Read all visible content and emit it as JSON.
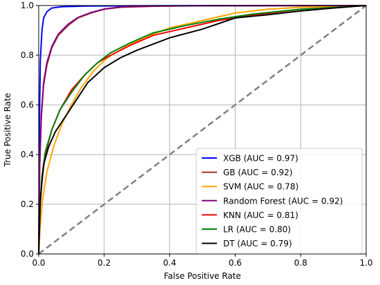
{
  "chart_data": {
    "type": "line",
    "xlabel": "False Positive Rate",
    "ylabel": "True Positive Rate",
    "xlim": [
      0,
      1
    ],
    "ylim": [
      0,
      1
    ],
    "grid": true,
    "legend_position": "bottom-right",
    "x_ticks": [
      "0.0",
      "0.2",
      "0.4",
      "0.6",
      "0.8",
      "1.0"
    ],
    "y_ticks": [
      "0.0",
      "0.2",
      "0.4",
      "0.6",
      "0.8",
      "1.0"
    ],
    "series": [
      {
        "name": "XGB (AUC = 0.97)",
        "color": "#0000ff",
        "points": [
          [
            0,
            0
          ],
          [
            0.002,
            0.5
          ],
          [
            0.005,
            0.78
          ],
          [
            0.01,
            0.9
          ],
          [
            0.015,
            0.95
          ],
          [
            0.025,
            0.975
          ],
          [
            0.04,
            0.99
          ],
          [
            0.07,
            0.995
          ],
          [
            0.15,
            0.998
          ],
          [
            0.3,
            0.999
          ],
          [
            1,
            1
          ]
        ]
      },
      {
        "name": "GB (AUC = 0.92)",
        "color": "#a52a2a",
        "points": [
          [
            0,
            0
          ],
          [
            0.003,
            0.35
          ],
          [
            0.008,
            0.55
          ],
          [
            0.015,
            0.68
          ],
          [
            0.025,
            0.76
          ],
          [
            0.04,
            0.83
          ],
          [
            0.06,
            0.88
          ],
          [
            0.09,
            0.92
          ],
          [
            0.12,
            0.95
          ],
          [
            0.16,
            0.97
          ],
          [
            0.2,
            0.985
          ],
          [
            0.25,
            0.993
          ],
          [
            0.35,
            0.997
          ],
          [
            0.5,
            0.999
          ],
          [
            1,
            1
          ]
        ]
      },
      {
        "name": "SVM (AUC = 0.78)",
        "color": "#ffa500",
        "points": [
          [
            0,
            0
          ],
          [
            0.004,
            0.1
          ],
          [
            0.012,
            0.22
          ],
          [
            0.025,
            0.33
          ],
          [
            0.045,
            0.43
          ],
          [
            0.07,
            0.52
          ],
          [
            0.1,
            0.6
          ],
          [
            0.13,
            0.67
          ],
          [
            0.17,
            0.74
          ],
          [
            0.21,
            0.79
          ],
          [
            0.26,
            0.83
          ],
          [
            0.32,
            0.87
          ],
          [
            0.4,
            0.91
          ],
          [
            0.5,
            0.94
          ],
          [
            0.6,
            0.97
          ],
          [
            0.7,
            0.985
          ],
          [
            0.8,
            0.993
          ],
          [
            1,
            1
          ]
        ]
      },
      {
        "name": "Random Forest (AUC = 0.92)",
        "color": "#800080",
        "points": [
          [
            0,
            0
          ],
          [
            0.003,
            0.36
          ],
          [
            0.008,
            0.56
          ],
          [
            0.015,
            0.69
          ],
          [
            0.025,
            0.77
          ],
          [
            0.04,
            0.835
          ],
          [
            0.06,
            0.885
          ],
          [
            0.09,
            0.925
          ],
          [
            0.12,
            0.952
          ],
          [
            0.16,
            0.972
          ],
          [
            0.2,
            0.986
          ],
          [
            0.25,
            0.994
          ],
          [
            0.35,
            0.998
          ],
          [
            0.5,
            0.999
          ],
          [
            1,
            1
          ]
        ]
      },
      {
        "name": "KNN (AUC = 0.81)",
        "color": "#ff0000",
        "points": [
          [
            0,
            0
          ],
          [
            0.003,
            0.16
          ],
          [
            0.01,
            0.3
          ],
          [
            0.02,
            0.4
          ],
          [
            0.04,
            0.5
          ],
          [
            0.065,
            0.58
          ],
          [
            0.1,
            0.66
          ],
          [
            0.14,
            0.72
          ],
          [
            0.18,
            0.77
          ],
          [
            0.22,
            0.8
          ],
          [
            0.28,
            0.84
          ],
          [
            0.35,
            0.88
          ],
          [
            0.45,
            0.91
          ],
          [
            0.55,
            0.94
          ],
          [
            0.65,
            0.96
          ],
          [
            0.8,
            0.985
          ],
          [
            1,
            1
          ]
        ]
      },
      {
        "name": "LR (AUC = 0.80)",
        "color": "#008000",
        "points": [
          [
            0,
            0
          ],
          [
            0.003,
            0.17
          ],
          [
            0.01,
            0.31
          ],
          [
            0.02,
            0.41
          ],
          [
            0.04,
            0.5
          ],
          [
            0.065,
            0.58
          ],
          [
            0.1,
            0.65
          ],
          [
            0.14,
            0.72
          ],
          [
            0.18,
            0.77
          ],
          [
            0.22,
            0.81
          ],
          [
            0.28,
            0.85
          ],
          [
            0.35,
            0.89
          ],
          [
            0.45,
            0.92
          ],
          [
            0.55,
            0.945
          ],
          [
            0.65,
            0.965
          ],
          [
            0.8,
            0.985
          ],
          [
            1,
            1
          ]
        ]
      },
      {
        "name": "DT (AUC = 0.79)",
        "color": "#000000",
        "points": [
          [
            0,
            0
          ],
          [
            0.005,
            0.22
          ],
          [
            0.015,
            0.36
          ],
          [
            0.03,
            0.43
          ],
          [
            0.05,
            0.49
          ],
          [
            0.08,
            0.55
          ],
          [
            0.11,
            0.61
          ],
          [
            0.15,
            0.69
          ],
          [
            0.2,
            0.75
          ],
          [
            0.25,
            0.79
          ],
          [
            0.3,
            0.82
          ],
          [
            0.4,
            0.87
          ],
          [
            0.5,
            0.905
          ],
          [
            0.6,
            0.95
          ],
          [
            0.7,
            0.963
          ],
          [
            0.8,
            0.978
          ],
          [
            0.9,
            0.99
          ],
          [
            1,
            1
          ]
        ]
      }
    ],
    "reference_line": {
      "color": "#808080",
      "points": [
        [
          0,
          0
        ],
        [
          1,
          1
        ]
      ]
    }
  }
}
